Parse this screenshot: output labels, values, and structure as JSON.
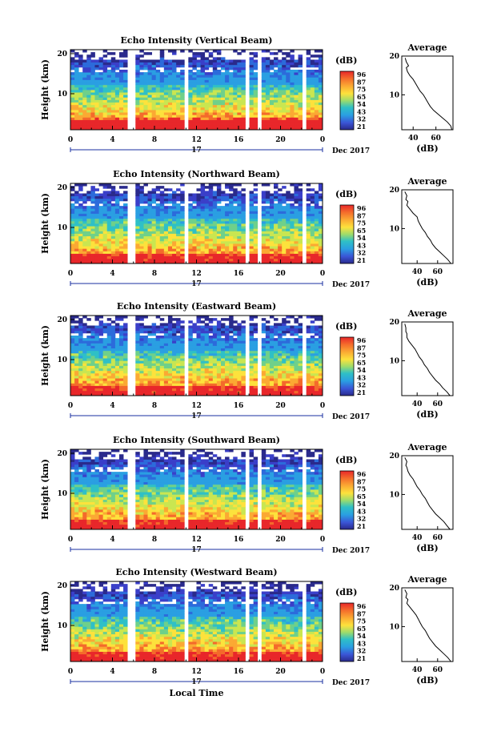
{
  "chart_data": [
    {
      "type": "heatmap",
      "title": "Echo Intensity (Vertical Beam)",
      "ylabel": "Height (km)",
      "xticks": [
        "0",
        "4",
        "8",
        "12",
        "16",
        "20",
        "0"
      ],
      "yticks": [
        "10",
        "20"
      ],
      "date_day": "17",
      "date_label": "Dec 2017",
      "colorbar": {
        "unit": "(dB)",
        "ticks": [
          "96",
          "87",
          "75",
          "65",
          "54",
          "43",
          "32",
          "21"
        ]
      },
      "gaps_hours": [
        [
          5.5,
          6.0
        ],
        [
          10.8,
          11.3
        ],
        [
          16.8,
          17.2
        ],
        [
          17.8,
          18.3
        ],
        [
          22.0,
          22.5
        ]
      ],
      "average": {
        "title": "Average",
        "xlabel": "(dB)",
        "xticks": [
          "40",
          "60"
        ],
        "yticks": [
          "10",
          "20"
        ],
        "xlim": [
          30,
          75
        ],
        "ylim": [
          1,
          20
        ],
        "x": [
          74,
          73,
          70,
          66,
          62,
          58,
          55,
          53,
          51,
          49,
          46,
          44,
          42,
          40,
          37,
          35,
          34,
          36,
          34,
          33
        ],
        "y": [
          1,
          2,
          3,
          4,
          5,
          6,
          7,
          8,
          9,
          10,
          11,
          12,
          13,
          14,
          15,
          16,
          17,
          17.5,
          18.5,
          19.5
        ]
      }
    },
    {
      "type": "heatmap",
      "title": "Echo Intensity (Northward Beam)",
      "ylabel": "Height (km)",
      "xticks": [
        "0",
        "4",
        "8",
        "12",
        "16",
        "20",
        "0"
      ],
      "yticks": [
        "10",
        "20"
      ],
      "date_day": "17",
      "date_label": "Dec 2017",
      "colorbar": {
        "unit": "(dB)",
        "ticks": [
          "96",
          "87",
          "75",
          "65",
          "54",
          "43",
          "32",
          "21"
        ]
      },
      "gaps_hours": [
        [
          5.5,
          6.0
        ],
        [
          10.8,
          11.3
        ],
        [
          16.8,
          17.2
        ],
        [
          17.8,
          18.3
        ],
        [
          22.0,
          22.5
        ]
      ],
      "average": {
        "title": "Average",
        "xlabel": "(dB)",
        "xticks": [
          "40",
          "60"
        ],
        "yticks": [
          "10",
          "20"
        ],
        "xlim": [
          25,
          75
        ],
        "ylim": [
          1,
          20
        ],
        "x": [
          73,
          70,
          66,
          62,
          58,
          55,
          53,
          50,
          48,
          45,
          43,
          41,
          40,
          36,
          33,
          30,
          31,
          29,
          30,
          28
        ],
        "y": [
          1,
          2,
          3,
          4,
          5,
          6,
          7,
          8,
          9,
          10,
          11,
          12,
          13,
          14,
          15,
          16,
          17,
          17.5,
          18.5,
          19.5
        ]
      }
    },
    {
      "type": "heatmap",
      "title": "Echo Intensity (Eastward Beam)",
      "ylabel": "Height (km)",
      "xticks": [
        "0",
        "4",
        "8",
        "12",
        "16",
        "20",
        "0"
      ],
      "yticks": [
        "10",
        "20"
      ],
      "date_day": "17",
      "date_label": "Dec 2017",
      "colorbar": {
        "unit": "(dB)",
        "ticks": [
          "96",
          "87",
          "75",
          "65",
          "54",
          "43",
          "32",
          "21"
        ]
      },
      "gaps_hours": [
        [
          5.5,
          6.0
        ],
        [
          10.8,
          11.3
        ],
        [
          16.8,
          17.2
        ],
        [
          17.8,
          18.3
        ],
        [
          22.0,
          22.5
        ]
      ],
      "average": {
        "title": "Average",
        "xlabel": "(dB)",
        "xticks": [
          "40",
          "60"
        ],
        "yticks": [
          "10",
          "20"
        ],
        "xlim": [
          25,
          75
        ],
        "ylim": [
          1,
          20
        ],
        "x": [
          72,
          69,
          65,
          62,
          58,
          55,
          52,
          50,
          47,
          45,
          42,
          40,
          38,
          35,
          32,
          30,
          30,
          29,
          29,
          28
        ],
        "y": [
          1,
          2,
          3,
          4,
          5,
          6,
          7,
          8,
          9,
          10,
          11,
          12,
          13,
          14,
          15,
          16,
          17,
          17.5,
          18.5,
          19.5
        ]
      }
    },
    {
      "type": "heatmap",
      "title": "Echo Intensity (Southward Beam)",
      "ylabel": "Height (km)",
      "xticks": [
        "0",
        "4",
        "8",
        "12",
        "16",
        "20",
        "0"
      ],
      "yticks": [
        "10",
        "20"
      ],
      "date_day": "17",
      "date_label": "Dec 2017",
      "colorbar": {
        "unit": "(dB)",
        "ticks": [
          "96",
          "87",
          "75",
          "65",
          "54",
          "43",
          "32",
          "21"
        ]
      },
      "gaps_hours": [
        [
          5.5,
          6.0
        ],
        [
          10.8,
          11.3
        ],
        [
          16.8,
          17.2
        ],
        [
          17.8,
          18.3
        ],
        [
          22.0,
          22.5
        ]
      ],
      "average": {
        "title": "Average",
        "xlabel": "(dB)",
        "xticks": [
          "40",
          "60"
        ],
        "yticks": [
          "10",
          "20"
        ],
        "xlim": [
          25,
          75
        ],
        "ylim": [
          1,
          20
        ],
        "x": [
          72,
          69,
          66,
          62,
          58,
          55,
          52,
          50,
          48,
          45,
          43,
          40,
          38,
          36,
          33,
          31,
          30,
          29,
          30,
          28
        ],
        "y": [
          1,
          2,
          3,
          4,
          5,
          6,
          7,
          8,
          9,
          10,
          11,
          12,
          13,
          14,
          15,
          16,
          17,
          17.5,
          18.5,
          19.5
        ]
      }
    },
    {
      "type": "heatmap",
      "title": "Echo Intensity (Westward Beam)",
      "ylabel": "Height (km)",
      "xticks": [
        "0",
        "4",
        "8",
        "12",
        "16",
        "20",
        "0"
      ],
      "yticks": [
        "10",
        "20"
      ],
      "date_day": "17",
      "date_label": "Dec 2017",
      "xlabel": "Local Time",
      "colorbar": {
        "unit": "(dB)",
        "ticks": [
          "96",
          "87",
          "75",
          "65",
          "54",
          "43",
          "32",
          "21"
        ]
      },
      "gaps_hours": [
        [
          5.5,
          6.0
        ],
        [
          10.8,
          11.3
        ],
        [
          16.8,
          17.2
        ],
        [
          17.8,
          18.3
        ],
        [
          22.0,
          22.5
        ]
      ],
      "average": {
        "title": "Average",
        "xlabel": "(dB)",
        "xticks": [
          "40",
          "60"
        ],
        "yticks": [
          "10",
          "20"
        ],
        "xlim": [
          25,
          75
        ],
        "ylim": [
          1,
          20
        ],
        "x": [
          73,
          70,
          66,
          62,
          58,
          55,
          52,
          50,
          48,
          45,
          43,
          41,
          39,
          36,
          33,
          30,
          31,
          29,
          30,
          28
        ],
        "y": [
          1,
          2,
          3,
          4,
          5,
          6,
          7,
          8,
          9,
          10,
          11,
          12,
          13,
          14,
          15,
          16,
          17,
          17.5,
          18.5,
          19.5
        ]
      }
    }
  ],
  "colormap": [
    "#e8272a",
    "#f46a2b",
    "#fba933",
    "#fde23c",
    "#c9e651",
    "#6fd08a",
    "#2fc0c6",
    "#2a9fe2",
    "#2c6bdb",
    "#3a3fc9",
    "#2a2a8c"
  ]
}
